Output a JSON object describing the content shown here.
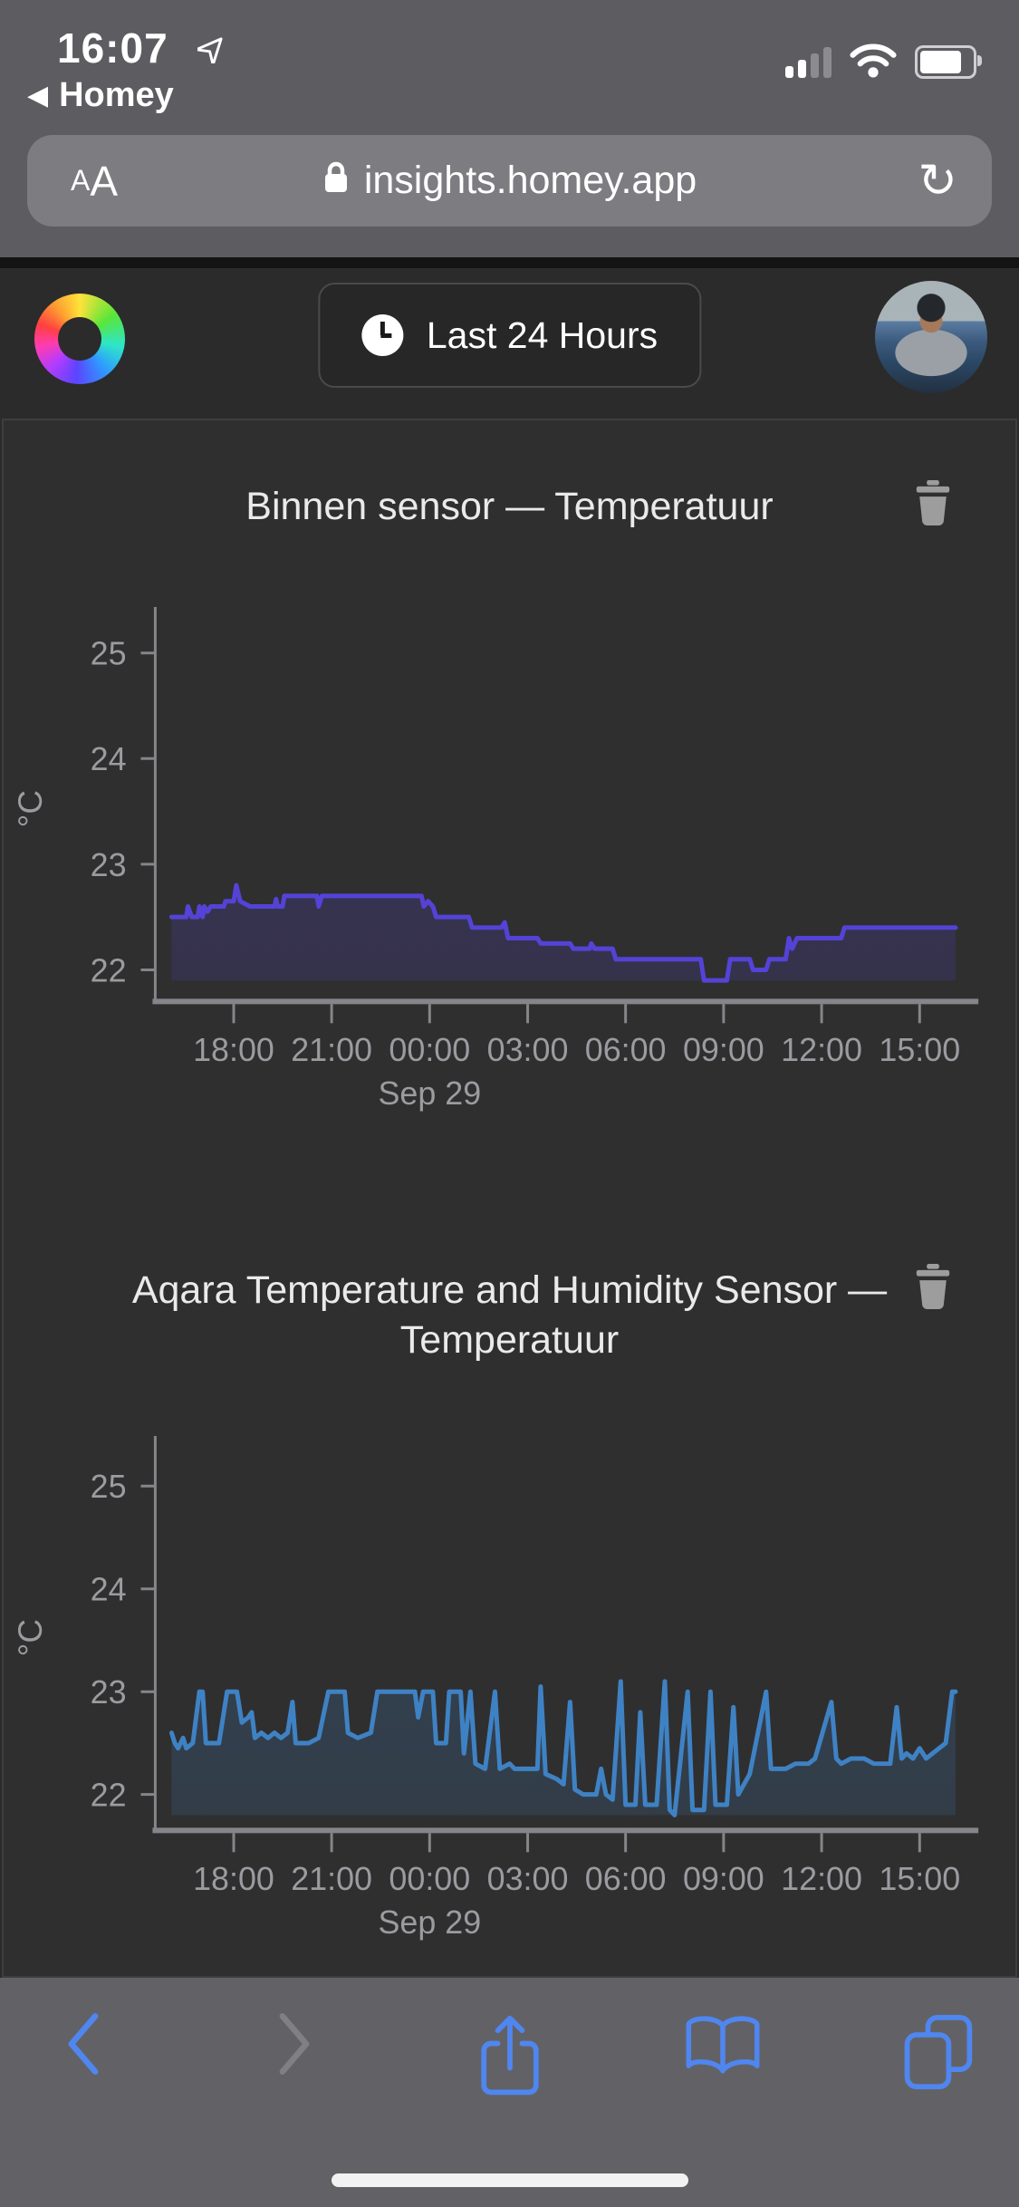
{
  "status_bar": {
    "time": "16:07",
    "back_triangle": "◀",
    "back_app_label": "Homey"
  },
  "url_bar": {
    "reader_small": "A",
    "reader_big": "A",
    "url": "insights.homey.app",
    "reload_glyph": "↻"
  },
  "site_header": {
    "range_button_label": "Last 24 Hours"
  },
  "icons": {
    "status": [
      "location-arrow",
      "cellular-signal",
      "wifi",
      "battery"
    ],
    "url_bar": [
      "text-size",
      "lock",
      "reload"
    ],
    "header": [
      "homey-ring-logo",
      "clock",
      "avatar"
    ],
    "charts": [
      "trash"
    ],
    "toolbar": [
      "chevron-left",
      "chevron-right",
      "share",
      "bookmarks",
      "tabs"
    ]
  },
  "colors": {
    "safari_chrome": "#5d5d61",
    "safari_accent": "#4f86f0",
    "toolbar_disabled": "#7f7f84",
    "page_background": "#2f2f30",
    "axis_gray": "#85858a",
    "tick_label_gray": "#9b9ba0"
  },
  "chart_data": [
    {
      "type": "area",
      "title": "Binnen sensor — Temperatuur",
      "ylabel": "°C",
      "ylim": [
        21.7,
        25.35
      ],
      "yticks": [
        22,
        23,
        24,
        25
      ],
      "xlim": [
        15.6,
        40.8
      ],
      "xticks": [
        18,
        21,
        24,
        27,
        30,
        33,
        36,
        39
      ],
      "xtick_labels": [
        "18:00",
        "21:00",
        "00:00",
        "03:00",
        "06:00",
        "09:00",
        "12:00",
        "15:00"
      ],
      "xsub_label": "Sep 29",
      "xsub_tick_index": 2,
      "grid": false,
      "legend": false,
      "line_color": "#5443d6",
      "fill_color": "#5443d6",
      "fill_opacity_top": 0.28,
      "fill_opacity_bottom": 0.16,
      "points": [
        [
          16.1,
          22.5
        ],
        [
          16.55,
          22.5
        ],
        [
          16.6,
          22.6
        ],
        [
          16.72,
          22.5
        ],
        [
          16.9,
          22.5
        ],
        [
          16.95,
          22.6
        ],
        [
          17.05,
          22.5
        ],
        [
          17.1,
          22.6
        ],
        [
          17.2,
          22.55
        ],
        [
          17.3,
          22.6
        ],
        [
          17.7,
          22.6
        ],
        [
          17.75,
          22.65
        ],
        [
          18.0,
          22.65
        ],
        [
          18.08,
          22.8
        ],
        [
          18.2,
          22.65
        ],
        [
          18.5,
          22.6
        ],
        [
          19.25,
          22.6
        ],
        [
          19.3,
          22.67
        ],
        [
          19.35,
          22.6
        ],
        [
          19.5,
          22.6
        ],
        [
          19.55,
          22.7
        ],
        [
          20.55,
          22.7
        ],
        [
          20.6,
          22.6
        ],
        [
          20.7,
          22.7
        ],
        [
          23.75,
          22.7
        ],
        [
          23.82,
          22.6
        ],
        [
          23.95,
          22.65
        ],
        [
          24.1,
          22.6
        ],
        [
          24.2,
          22.5
        ],
        [
          25.2,
          22.5
        ],
        [
          25.3,
          22.4
        ],
        [
          26.2,
          22.4
        ],
        [
          26.3,
          22.45
        ],
        [
          26.4,
          22.3
        ],
        [
          27.3,
          22.3
        ],
        [
          27.4,
          22.25
        ],
        [
          28.3,
          22.25
        ],
        [
          28.4,
          22.2
        ],
        [
          28.9,
          22.2
        ],
        [
          28.95,
          22.25
        ],
        [
          29.05,
          22.2
        ],
        [
          29.6,
          22.2
        ],
        [
          29.7,
          22.1
        ],
        [
          32.3,
          22.1
        ],
        [
          32.4,
          21.9
        ],
        [
          33.1,
          21.9
        ],
        [
          33.2,
          22.1
        ],
        [
          33.8,
          22.1
        ],
        [
          33.9,
          22.0
        ],
        [
          34.3,
          22.0
        ],
        [
          34.4,
          22.1
        ],
        [
          34.9,
          22.1
        ],
        [
          35.0,
          22.3
        ],
        [
          35.1,
          22.2
        ],
        [
          35.25,
          22.3
        ],
        [
          36.6,
          22.3
        ],
        [
          36.7,
          22.4
        ],
        [
          40.1,
          22.4
        ]
      ]
    },
    {
      "type": "area",
      "title": "Aqara Temperature and Humidity Sensor — Temperatuur",
      "ylabel": "°C",
      "ylim": [
        21.65,
        25.4
      ],
      "yticks": [
        22,
        23,
        24,
        25
      ],
      "xlim": [
        15.6,
        40.8
      ],
      "xticks": [
        18,
        21,
        24,
        27,
        30,
        33,
        36,
        39
      ],
      "xtick_labels": [
        "18:00",
        "21:00",
        "00:00",
        "03:00",
        "06:00",
        "09:00",
        "12:00",
        "15:00"
      ],
      "xsub_label": "Sep 29",
      "xsub_tick_index": 2,
      "grid": false,
      "legend": false,
      "line_color": "#3f82c4",
      "fill_color": "#3f82c4",
      "fill_opacity_top": 0.26,
      "fill_opacity_bottom": 0.16,
      "points": [
        [
          16.1,
          22.6
        ],
        [
          16.2,
          22.5
        ],
        [
          16.3,
          22.45
        ],
        [
          16.45,
          22.55
        ],
        [
          16.55,
          22.45
        ],
        [
          16.75,
          22.5
        ],
        [
          16.95,
          23.0
        ],
        [
          17.05,
          23.0
        ],
        [
          17.15,
          22.5
        ],
        [
          17.55,
          22.5
        ],
        [
          17.8,
          23.0
        ],
        [
          18.1,
          23.0
        ],
        [
          18.25,
          22.7
        ],
        [
          18.45,
          22.75
        ],
        [
          18.55,
          22.8
        ],
        [
          18.65,
          22.55
        ],
        [
          18.85,
          22.6
        ],
        [
          19.05,
          22.55
        ],
        [
          19.25,
          22.6
        ],
        [
          19.45,
          22.55
        ],
        [
          19.65,
          22.6
        ],
        [
          19.8,
          22.9
        ],
        [
          19.9,
          22.5
        ],
        [
          20.3,
          22.5
        ],
        [
          20.6,
          22.55
        ],
        [
          20.9,
          23.0
        ],
        [
          21.4,
          23.0
        ],
        [
          21.5,
          22.6
        ],
        [
          21.8,
          22.55
        ],
        [
          22.2,
          22.6
        ],
        [
          22.4,
          23.0
        ],
        [
          23.55,
          23.0
        ],
        [
          23.65,
          22.75
        ],
        [
          23.8,
          23.0
        ],
        [
          24.1,
          23.0
        ],
        [
          24.2,
          22.5
        ],
        [
          24.5,
          22.5
        ],
        [
          24.6,
          23.0
        ],
        [
          24.95,
          23.0
        ],
        [
          25.05,
          22.4
        ],
        [
          25.25,
          23.0
        ],
        [
          25.4,
          22.3
        ],
        [
          25.7,
          22.25
        ],
        [
          26.0,
          23.0
        ],
        [
          26.15,
          22.25
        ],
        [
          26.45,
          22.3
        ],
        [
          26.6,
          22.25
        ],
        [
          27.3,
          22.25
        ],
        [
          27.4,
          23.05
        ],
        [
          27.55,
          22.2
        ],
        [
          27.9,
          22.15
        ],
        [
          28.1,
          22.1
        ],
        [
          28.3,
          22.9
        ],
        [
          28.45,
          22.05
        ],
        [
          28.7,
          22.0
        ],
        [
          29.1,
          22.0
        ],
        [
          29.25,
          22.25
        ],
        [
          29.4,
          22.0
        ],
        [
          29.6,
          21.95
        ],
        [
          29.85,
          23.1
        ],
        [
          30.0,
          21.9
        ],
        [
          30.3,
          21.9
        ],
        [
          30.45,
          22.8
        ],
        [
          30.6,
          21.9
        ],
        [
          30.95,
          21.9
        ],
        [
          31.2,
          23.1
        ],
        [
          31.35,
          21.85
        ],
        [
          31.5,
          21.8
        ],
        [
          31.9,
          23.0
        ],
        [
          32.05,
          21.85
        ],
        [
          32.4,
          21.85
        ],
        [
          32.6,
          23.0
        ],
        [
          32.75,
          21.9
        ],
        [
          33.1,
          21.9
        ],
        [
          33.3,
          22.85
        ],
        [
          33.45,
          22.0
        ],
        [
          33.8,
          22.2
        ],
        [
          34.3,
          23.0
        ],
        [
          34.45,
          22.25
        ],
        [
          34.9,
          22.25
        ],
        [
          35.2,
          22.3
        ],
        [
          35.6,
          22.3
        ],
        [
          35.8,
          22.35
        ],
        [
          36.3,
          22.9
        ],
        [
          36.45,
          22.35
        ],
        [
          36.6,
          22.3
        ],
        [
          36.9,
          22.35
        ],
        [
          37.3,
          22.35
        ],
        [
          37.6,
          22.3
        ],
        [
          38.1,
          22.3
        ],
        [
          38.3,
          22.85
        ],
        [
          38.45,
          22.35
        ],
        [
          38.6,
          22.4
        ],
        [
          38.8,
          22.35
        ],
        [
          39.0,
          22.45
        ],
        [
          39.2,
          22.35
        ],
        [
          39.4,
          22.4
        ],
        [
          39.8,
          22.5
        ],
        [
          40.0,
          23.0
        ],
        [
          40.1,
          23.0
        ]
      ]
    }
  ]
}
